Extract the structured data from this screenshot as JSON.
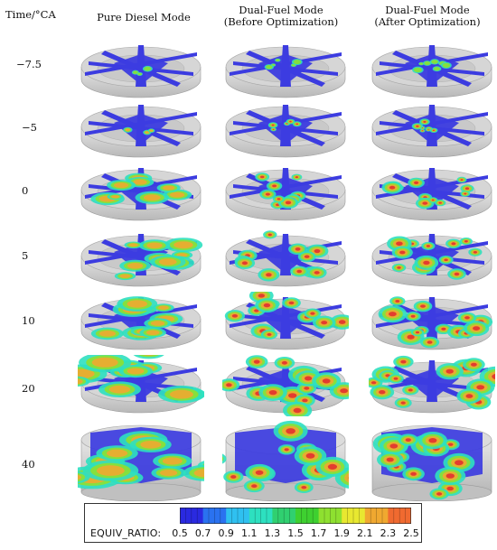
{
  "header": {
    "time_label": "Time/°CA",
    "columns": [
      {
        "line1": "Pure Diesel Mode",
        "line2": ""
      },
      {
        "line1": "Dual-Fuel Mode",
        "line2": "(Before Optimization)"
      },
      {
        "line1": "Dual-Fuel Mode",
        "line2": "(After Optimization)"
      }
    ]
  },
  "rows": [
    {
      "time": "−7.5"
    },
    {
      "time": "−5"
    },
    {
      "time": "0"
    },
    {
      "time": "5"
    },
    {
      "time": "10"
    },
    {
      "time": "20"
    },
    {
      "time": "40"
    }
  ],
  "legend": {
    "title": "EQUIV_RATIO:",
    "ticks": [
      "0.5",
      "0.7",
      "0.9",
      "1.1",
      "1.3",
      "1.5",
      "1.7",
      "1.9",
      "2.1",
      "2.3",
      "2.5"
    ],
    "colors": [
      "#2a2ae0",
      "#2a72f0",
      "#2fc0f0",
      "#2de0c0",
      "#30d070",
      "#3ed030",
      "#8ee030",
      "#e8e830",
      "#f0a830",
      "#f06a30",
      "#e23030"
    ]
  }
}
